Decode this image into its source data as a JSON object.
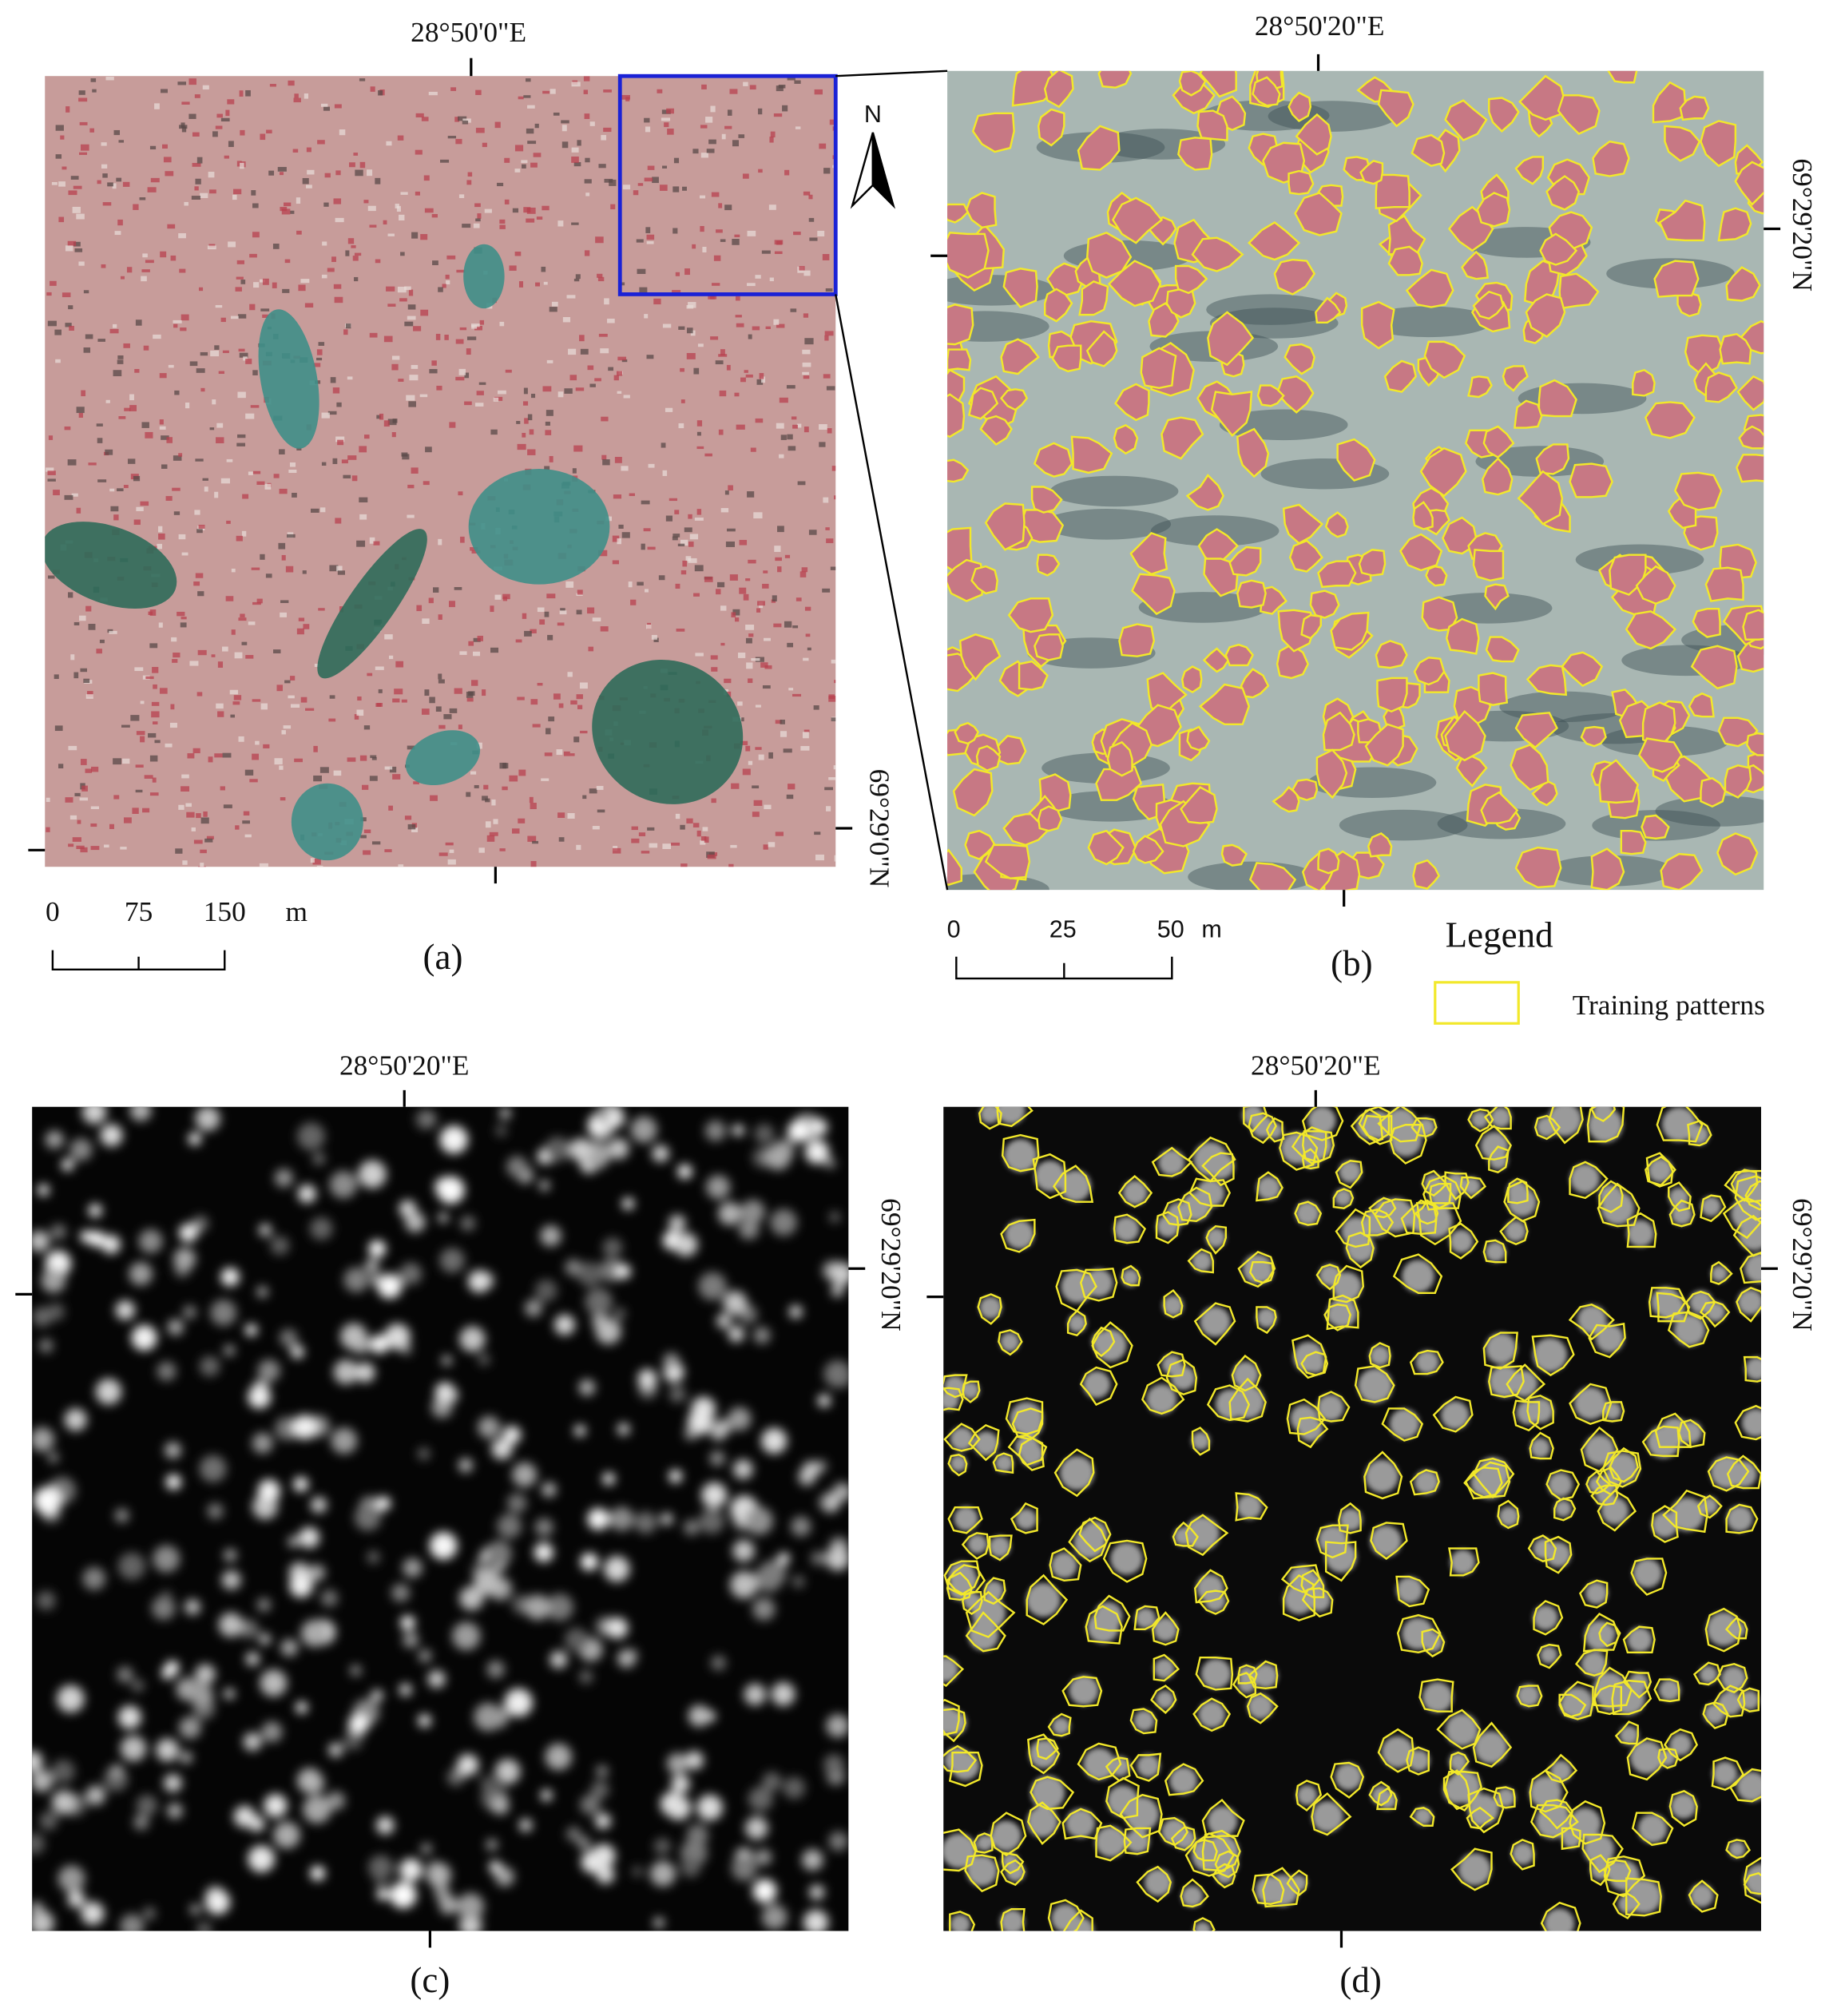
{
  "panels": [
    {
      "label": "(a)",
      "top_coord": "28°50'0\"E",
      "right_coord": "69°29'0\"N",
      "scale": {
        "ticks": [
          "0",
          "75",
          "150"
        ],
        "unit": "m"
      },
      "north": "N"
    },
    {
      "label": "(b)",
      "top_coord": "28°50'20\"E",
      "right_coord": "69°29'20\"N",
      "scale": {
        "ticks": [
          "0",
          "25",
          "50"
        ],
        "unit": "m"
      }
    },
    {
      "label": "(c)",
      "top_coord": "28°50'20\"E",
      "right_coord": "69°29'20\"N"
    },
    {
      "label": "(d)",
      "top_coord": "28°50'20\"E",
      "right_coord": "69°29'20\"N"
    }
  ],
  "legend": {
    "title": "Legend",
    "items": [
      "Training patterns"
    ]
  }
}
